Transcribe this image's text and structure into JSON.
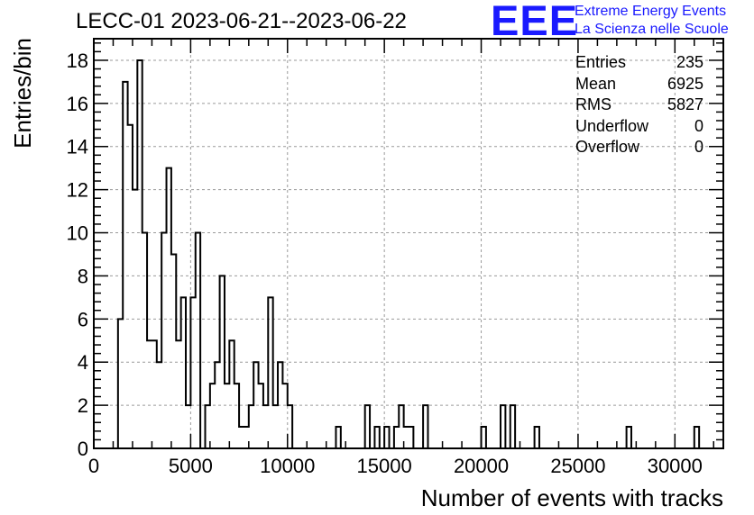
{
  "chart_data": {
    "type": "bar",
    "title": "LECC-01 2023-06-21--2023-06-22",
    "xlabel": "Number of events with tracks",
    "ylabel": "Entries/bin",
    "xlim": [
      0,
      32500
    ],
    "ylim": [
      0,
      19
    ],
    "x_ticks": [
      0,
      5000,
      10000,
      15000,
      20000,
      25000,
      30000
    ],
    "y_ticks": [
      0,
      2,
      4,
      6,
      8,
      10,
      12,
      14,
      16,
      18
    ],
    "grid": true,
    "bin_width": 250,
    "bins": [
      {
        "x": 1250,
        "y": 6
      },
      {
        "x": 1500,
        "y": 17
      },
      {
        "x": 1750,
        "y": 15
      },
      {
        "x": 2000,
        "y": 12
      },
      {
        "x": 2250,
        "y": 18
      },
      {
        "x": 2500,
        "y": 10
      },
      {
        "x": 2750,
        "y": 5
      },
      {
        "x": 3000,
        "y": 5
      },
      {
        "x": 3250,
        "y": 4
      },
      {
        "x": 3500,
        "y": 10
      },
      {
        "x": 3750,
        "y": 13
      },
      {
        "x": 4000,
        "y": 9
      },
      {
        "x": 4250,
        "y": 5
      },
      {
        "x": 4500,
        "y": 7
      },
      {
        "x": 4750,
        "y": 2
      },
      {
        "x": 5000,
        "y": 7
      },
      {
        "x": 5250,
        "y": 10
      },
      {
        "x": 5500,
        "y": 0
      },
      {
        "x": 5750,
        "y": 2
      },
      {
        "x": 6000,
        "y": 3
      },
      {
        "x": 6250,
        "y": 4
      },
      {
        "x": 6500,
        "y": 8
      },
      {
        "x": 6750,
        "y": 3
      },
      {
        "x": 7000,
        "y": 5
      },
      {
        "x": 7250,
        "y": 3
      },
      {
        "x": 7500,
        "y": 1
      },
      {
        "x": 7750,
        "y": 1
      },
      {
        "x": 8000,
        "y": 2
      },
      {
        "x": 8250,
        "y": 4
      },
      {
        "x": 8500,
        "y": 3
      },
      {
        "x": 8750,
        "y": 2
      },
      {
        "x": 9000,
        "y": 7
      },
      {
        "x": 9250,
        "y": 2
      },
      {
        "x": 9500,
        "y": 4
      },
      {
        "x": 9750,
        "y": 3
      },
      {
        "x": 10000,
        "y": 2
      },
      {
        "x": 10250,
        "y": 0
      },
      {
        "x": 10500,
        "y": 0
      },
      {
        "x": 10750,
        "y": 0
      },
      {
        "x": 11000,
        "y": 0
      },
      {
        "x": 11250,
        "y": 0
      },
      {
        "x": 11500,
        "y": 0
      },
      {
        "x": 11750,
        "y": 0
      },
      {
        "x": 12000,
        "y": 0
      },
      {
        "x": 12250,
        "y": 0
      },
      {
        "x": 12500,
        "y": 1
      },
      {
        "x": 12750,
        "y": 0
      },
      {
        "x": 13000,
        "y": 0
      },
      {
        "x": 13250,
        "y": 0
      },
      {
        "x": 13500,
        "y": 0
      },
      {
        "x": 13750,
        "y": 0
      },
      {
        "x": 14000,
        "y": 2
      },
      {
        "x": 14250,
        "y": 0
      },
      {
        "x": 14500,
        "y": 1
      },
      {
        "x": 14750,
        "y": 0
      },
      {
        "x": 15000,
        "y": 1
      },
      {
        "x": 15250,
        "y": 0
      },
      {
        "x": 15500,
        "y": 1
      },
      {
        "x": 15750,
        "y": 2
      },
      {
        "x": 16000,
        "y": 1
      },
      {
        "x": 16250,
        "y": 1
      },
      {
        "x": 16500,
        "y": 0
      },
      {
        "x": 16750,
        "y": 0
      },
      {
        "x": 17000,
        "y": 2
      },
      {
        "x": 17250,
        "y": 0
      },
      {
        "x": 17500,
        "y": 0
      },
      {
        "x": 17750,
        "y": 0
      },
      {
        "x": 18000,
        "y": 0
      },
      {
        "x": 18250,
        "y": 0
      },
      {
        "x": 18500,
        "y": 0
      },
      {
        "x": 18750,
        "y": 0
      },
      {
        "x": 19000,
        "y": 0
      },
      {
        "x": 19250,
        "y": 0
      },
      {
        "x": 19500,
        "y": 0
      },
      {
        "x": 19750,
        "y": 0
      },
      {
        "x": 20000,
        "y": 1
      },
      {
        "x": 20250,
        "y": 0
      },
      {
        "x": 20500,
        "y": 0
      },
      {
        "x": 20750,
        "y": 0
      },
      {
        "x": 21000,
        "y": 2
      },
      {
        "x": 21250,
        "y": 0
      },
      {
        "x": 21500,
        "y": 2
      },
      {
        "x": 21750,
        "y": 0
      },
      {
        "x": 22000,
        "y": 0
      },
      {
        "x": 22250,
        "y": 0
      },
      {
        "x": 22500,
        "y": 0
      },
      {
        "x": 22750,
        "y": 1
      },
      {
        "x": 23000,
        "y": 0
      },
      {
        "x": 23250,
        "y": 0
      },
      {
        "x": 23500,
        "y": 0
      },
      {
        "x": 23750,
        "y": 0
      },
      {
        "x": 24000,
        "y": 0
      },
      {
        "x": 24250,
        "y": 0
      },
      {
        "x": 24500,
        "y": 0
      },
      {
        "x": 24750,
        "y": 0
      },
      {
        "x": 25000,
        "y": 0
      },
      {
        "x": 25250,
        "y": 0
      },
      {
        "x": 25500,
        "y": 0
      },
      {
        "x": 25750,
        "y": 0
      },
      {
        "x": 26000,
        "y": 0
      },
      {
        "x": 26250,
        "y": 0
      },
      {
        "x": 26500,
        "y": 0
      },
      {
        "x": 26750,
        "y": 0
      },
      {
        "x": 27000,
        "y": 0
      },
      {
        "x": 27250,
        "y": 0
      },
      {
        "x": 27500,
        "y": 1
      },
      {
        "x": 27750,
        "y": 0
      },
      {
        "x": 28000,
        "y": 0
      },
      {
        "x": 28250,
        "y": 0
      },
      {
        "x": 28500,
        "y": 0
      },
      {
        "x": 28750,
        "y": 0
      },
      {
        "x": 29000,
        "y": 0
      },
      {
        "x": 29250,
        "y": 0
      },
      {
        "x": 29500,
        "y": 0
      },
      {
        "x": 29750,
        "y": 0
      },
      {
        "x": 30000,
        "y": 0
      },
      {
        "x": 30250,
        "y": 0
      },
      {
        "x": 30500,
        "y": 0
      },
      {
        "x": 30750,
        "y": 0
      },
      {
        "x": 31000,
        "y": 1
      }
    ],
    "stats": [
      {
        "label": "Entries",
        "value": "235"
      },
      {
        "label": "Mean",
        "value": "6925"
      },
      {
        "label": "RMS",
        "value": "5827"
      },
      {
        "label": "Underflow",
        "value": "0"
      },
      {
        "label": "Overflow",
        "value": "0"
      }
    ]
  },
  "logo": {
    "mark": "EEE",
    "line1": "Extreme Energy Events",
    "line2": "La Scienza nelle Scuole"
  }
}
